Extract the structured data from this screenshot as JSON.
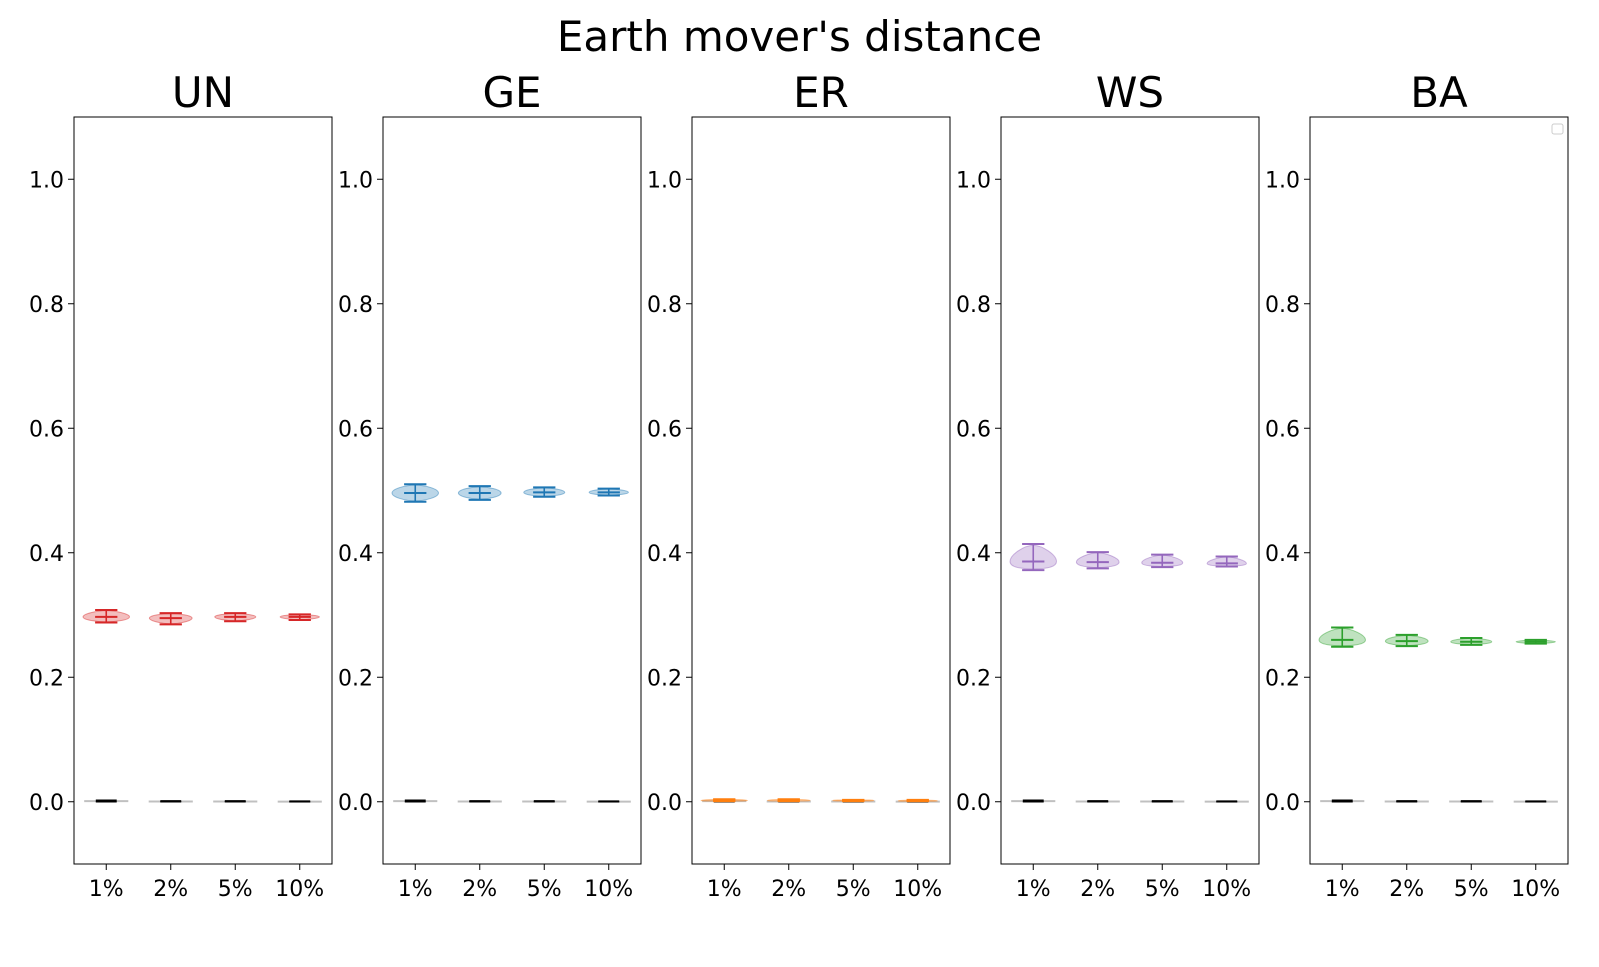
{
  "suptitle": "Earth mover's distance",
  "chart_data": [
    {
      "type": "violin",
      "title": "UN",
      "color": "#d62728",
      "categories": [
        "1%",
        "2%",
        "5%",
        "10%"
      ],
      "ylim": [
        -0.1,
        1.1
      ],
      "yticks": [
        "0.0",
        "0.2",
        "0.4",
        "0.6",
        "0.8",
        "1.0"
      ],
      "violins": [
        {
          "min": 0.288,
          "median": 0.297,
          "max": 0.308
        },
        {
          "min": 0.285,
          "median": 0.295,
          "max": 0.303
        },
        {
          "min": 0.29,
          "median": 0.297,
          "max": 0.303
        },
        {
          "min": 0.292,
          "median": 0.297,
          "max": 0.301
        }
      ],
      "baseline": [
        {
          "min": 0.0,
          "median": 0.001,
          "max": 0.002
        },
        {
          "min": 0.0,
          "median": 0.0005,
          "max": 0.001
        },
        {
          "min": 0.0,
          "median": 0.0005,
          "max": 0.001
        },
        {
          "min": 0.0,
          "median": 0.0003,
          "max": 0.0007
        }
      ]
    },
    {
      "type": "violin",
      "title": "GE",
      "color": "#1f77b4",
      "categories": [
        "1%",
        "2%",
        "5%",
        "10%"
      ],
      "ylim": [
        -0.1,
        1.1
      ],
      "yticks": [
        "0.0",
        "0.2",
        "0.4",
        "0.6",
        "0.8",
        "1.0"
      ],
      "violins": [
        {
          "min": 0.482,
          "median": 0.496,
          "max": 0.51
        },
        {
          "min": 0.485,
          "median": 0.496,
          "max": 0.507
        },
        {
          "min": 0.49,
          "median": 0.497,
          "max": 0.505
        },
        {
          "min": 0.492,
          "median": 0.497,
          "max": 0.503
        }
      ],
      "baseline": [
        {
          "min": 0.0,
          "median": 0.001,
          "max": 0.002
        },
        {
          "min": 0.0,
          "median": 0.0005,
          "max": 0.001
        },
        {
          "min": 0.0,
          "median": 0.0005,
          "max": 0.001
        },
        {
          "min": 0.0,
          "median": 0.0003,
          "max": 0.0007
        }
      ]
    },
    {
      "type": "violin",
      "title": "ER",
      "color": "#ff7f0e",
      "categories": [
        "1%",
        "2%",
        "5%",
        "10%"
      ],
      "ylim": [
        -0.1,
        1.1
      ],
      "yticks": [
        "0.0",
        "0.2",
        "0.4",
        "0.6",
        "0.8",
        "1.0"
      ],
      "violins": [
        {
          "min": 0.001,
          "median": 0.002,
          "max": 0.004
        },
        {
          "min": 0.001,
          "median": 0.002,
          "max": 0.004
        },
        {
          "min": 0.001,
          "median": 0.002,
          "max": 0.003
        },
        {
          "min": 0.001,
          "median": 0.0015,
          "max": 0.003
        }
      ],
      "baseline": [
        {
          "min": 0.0,
          "median": 0.001,
          "max": 0.002
        },
        {
          "min": 0.0,
          "median": 0.0005,
          "max": 0.001
        },
        {
          "min": 0.0,
          "median": 0.0005,
          "max": 0.001
        },
        {
          "min": 0.0,
          "median": 0.0003,
          "max": 0.0007
        }
      ]
    },
    {
      "type": "violin",
      "title": "WS",
      "color": "#9467bd",
      "categories": [
        "1%",
        "2%",
        "5%",
        "10%"
      ],
      "ylim": [
        -0.1,
        1.1
      ],
      "yticks": [
        "0.0",
        "0.2",
        "0.4",
        "0.6",
        "0.8",
        "1.0"
      ],
      "violins": [
        {
          "min": 0.372,
          "median": 0.386,
          "max": 0.414
        },
        {
          "min": 0.375,
          "median": 0.385,
          "max": 0.401
        },
        {
          "min": 0.377,
          "median": 0.384,
          "max": 0.397
        },
        {
          "min": 0.378,
          "median": 0.383,
          "max": 0.394
        }
      ],
      "baseline": [
        {
          "min": 0.0,
          "median": 0.001,
          "max": 0.002
        },
        {
          "min": 0.0,
          "median": 0.0005,
          "max": 0.001
        },
        {
          "min": 0.0,
          "median": 0.0005,
          "max": 0.001
        },
        {
          "min": 0.0,
          "median": 0.0003,
          "max": 0.0007
        }
      ]
    },
    {
      "type": "violin",
      "title": "BA",
      "color": "#2ca02c",
      "categories": [
        "1%",
        "2%",
        "5%",
        "10%"
      ],
      "ylim": [
        -0.1,
        1.1
      ],
      "yticks": [
        "0.0",
        "0.2",
        "0.4",
        "0.6",
        "0.8",
        "1.0"
      ],
      "violins": [
        {
          "min": 0.249,
          "median": 0.26,
          "max": 0.28
        },
        {
          "min": 0.25,
          "median": 0.258,
          "max": 0.268
        },
        {
          "min": 0.252,
          "median": 0.257,
          "max": 0.263
        },
        {
          "min": 0.254,
          "median": 0.257,
          "max": 0.26
        }
      ],
      "baseline": [
        {
          "min": 0.0,
          "median": 0.001,
          "max": 0.002
        },
        {
          "min": 0.0,
          "median": 0.0005,
          "max": 0.001
        },
        {
          "min": 0.0,
          "median": 0.0005,
          "max": 0.001
        },
        {
          "min": 0.0,
          "median": 0.0003,
          "max": 0.0007
        }
      ],
      "legend": {
        "entries": [],
        "loc": "upper right"
      }
    }
  ]
}
